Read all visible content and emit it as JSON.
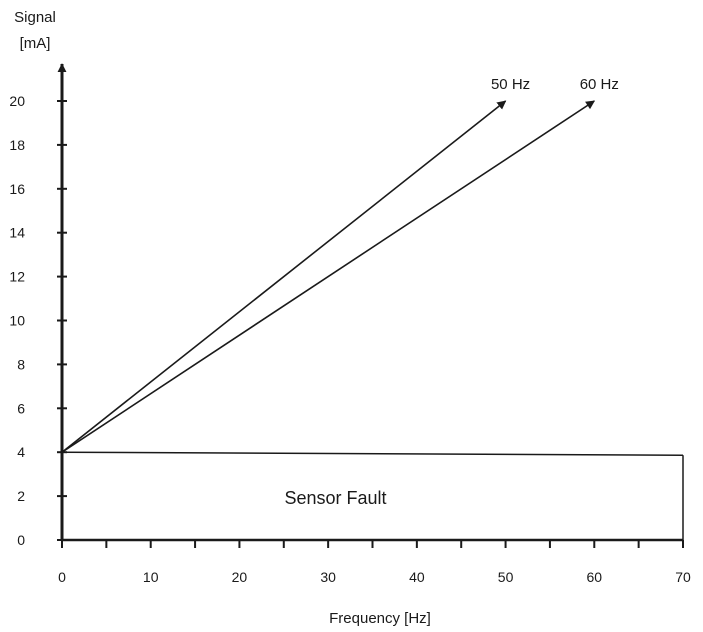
{
  "chart_data": {
    "type": "line",
    "title": "",
    "ylabel_line1": "Signal",
    "ylabel_line2": "[mA]",
    "xlabel": "Frequency [Hz]",
    "xlim": [
      0,
      70
    ],
    "ylim": [
      0,
      20
    ],
    "x_ticks": [
      0,
      10,
      20,
      30,
      40,
      50,
      60,
      70
    ],
    "x_minor_ticks": [
      5,
      15,
      25,
      35,
      45,
      55,
      65
    ],
    "y_ticks": [
      0,
      2,
      4,
      6,
      8,
      10,
      12,
      14,
      16,
      18,
      20
    ],
    "grid": false,
    "line_color": "#1a1a1a",
    "series": [
      {
        "name": "50 Hz",
        "x": [
          0,
          50
        ],
        "y": [
          4,
          20
        ]
      },
      {
        "name": "60 Hz",
        "x": [
          0,
          60
        ],
        "y": [
          4,
          20
        ]
      }
    ],
    "regions": [
      {
        "label": "Sensor Fault",
        "x": [
          0,
          70
        ],
        "y": [
          0,
          4
        ]
      }
    ]
  }
}
